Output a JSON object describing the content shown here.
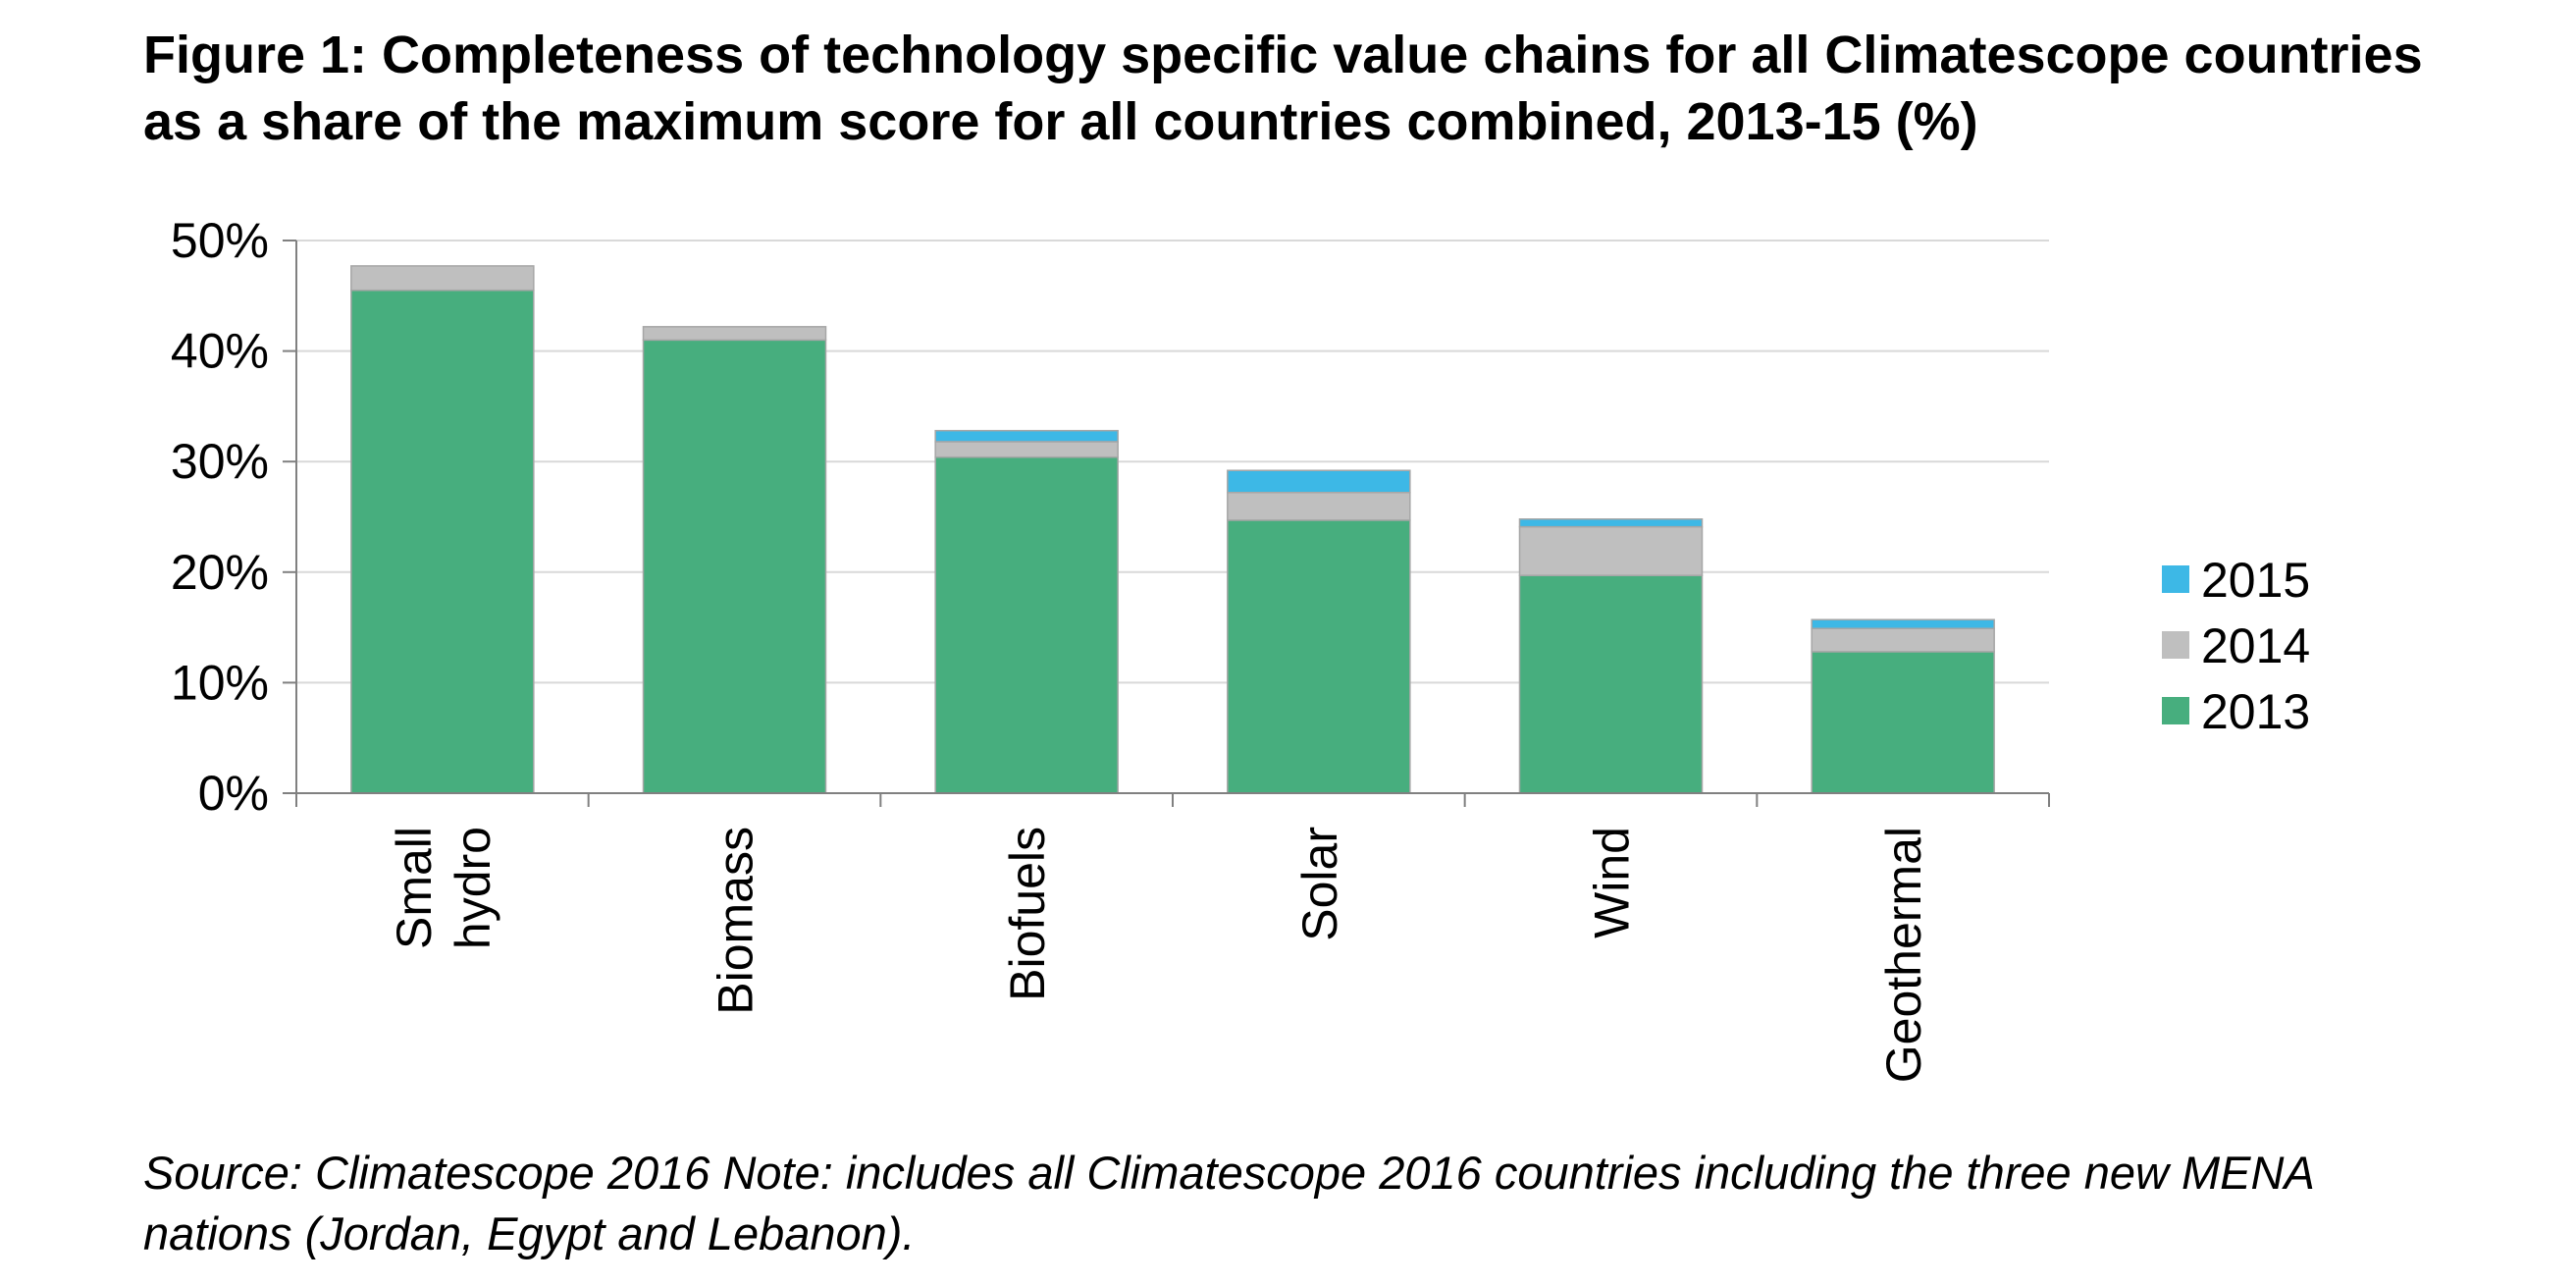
{
  "chart_data": {
    "type": "bar",
    "stacked": true,
    "title_lines": [
      "Figure 1: Completeness of technology specific value chains for all Climatescope countries",
      "as a share of the maximum score for all countries combined, 2013-15 (%)"
    ],
    "categories": [
      "Small hydro",
      "Biomass",
      "Biofuels",
      "Solar",
      "Wind",
      "Geothermal"
    ],
    "category_label_lines": [
      [
        "Small",
        "hydro"
      ],
      [
        "Biomass"
      ],
      [
        "Biofuels"
      ],
      [
        "Solar"
      ],
      [
        "Wind"
      ],
      [
        "Geothermal"
      ]
    ],
    "series": [
      {
        "name": "2013",
        "color": "#47AE7E",
        "values": [
          45.5,
          41.0,
          30.4,
          24.7,
          19.7,
          12.8
        ]
      },
      {
        "name": "2014",
        "color": "#BFBFBF",
        "values": [
          2.2,
          1.2,
          1.4,
          2.5,
          4.4,
          2.1
        ]
      },
      {
        "name": "2015",
        "color": "#3DB8E6",
        "values": [
          0.0,
          0.0,
          1.0,
          2.0,
          0.7,
          0.8
        ]
      }
    ],
    "y_ticks": [
      "0%",
      "10%",
      "20%",
      "30%",
      "40%",
      "50%"
    ],
    "ylim": [
      0,
      50
    ],
    "grid": true,
    "legend_position": "right",
    "legend_order": [
      "2015",
      "2014",
      "2013"
    ],
    "source_lines": [
      "Source: Climatescope 2016 Note: includes all Climatescope 2016 countries including the three new MENA",
      "nations (Jordan, Egypt and Lebanon)."
    ]
  }
}
